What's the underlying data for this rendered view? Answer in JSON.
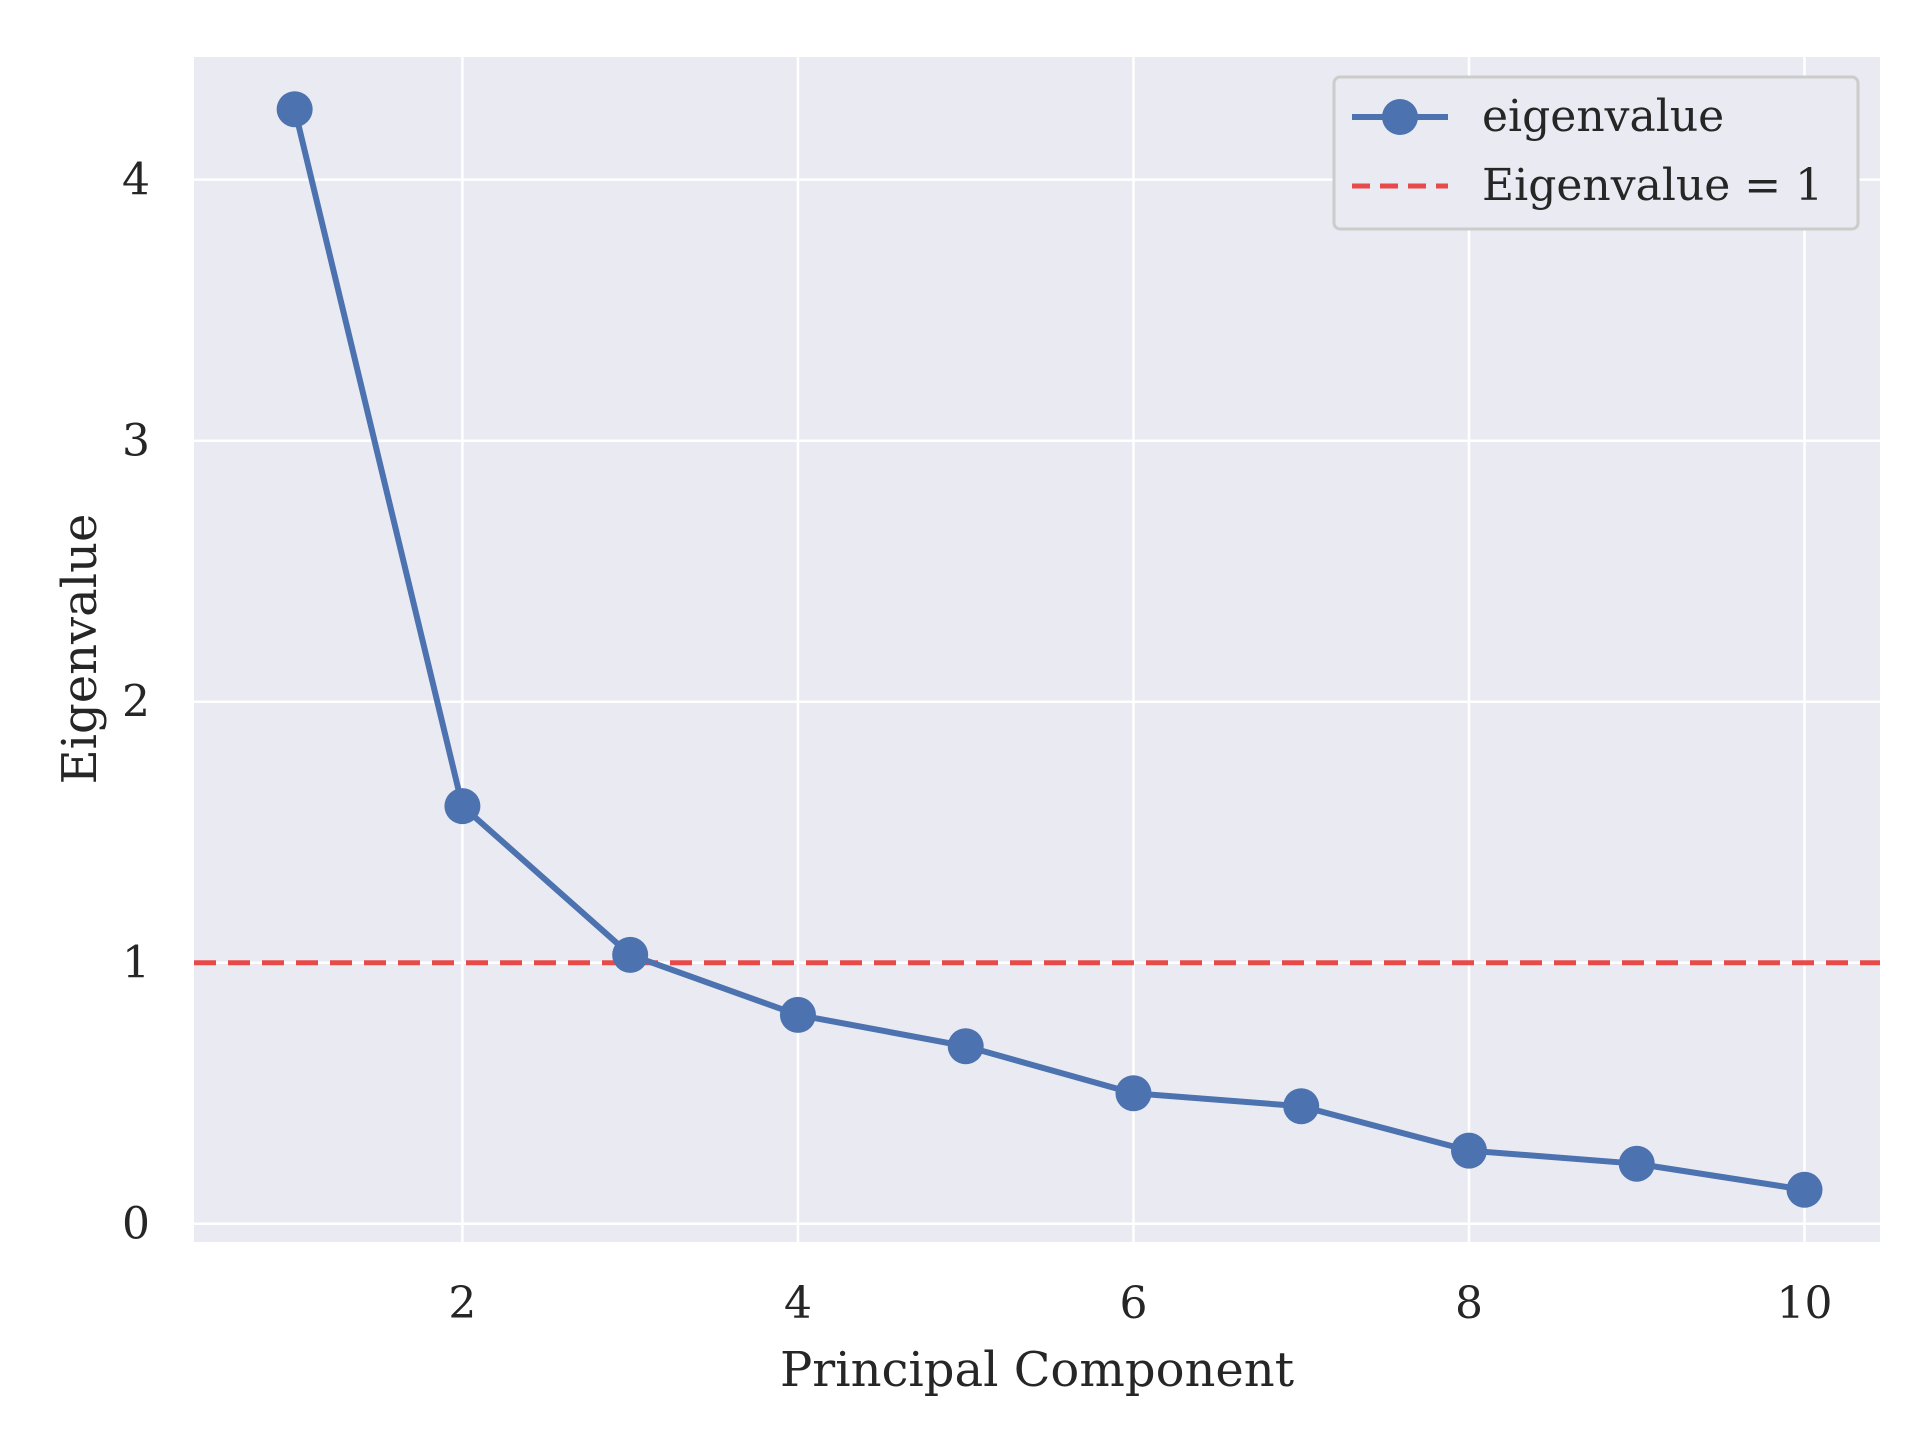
{
  "chart_data": {
    "type": "line",
    "title": "",
    "xlabel": "Principal Component",
    "ylabel": "Eigenvalue",
    "xlim": [
      0.4,
      10.45
    ],
    "ylim": [
      -0.07,
      4.47
    ],
    "xticks": [
      2,
      4,
      6,
      8,
      10
    ],
    "yticks": [
      0,
      1,
      2,
      3,
      4
    ],
    "grid": true,
    "legend_position": "top-right",
    "series": [
      {
        "name": "eigenvalue",
        "color": "#4c72b0",
        "marker": "circle",
        "x": [
          1,
          2,
          3,
          4,
          5,
          6,
          7,
          8,
          9,
          10
        ],
        "y": [
          4.27,
          1.6,
          1.03,
          0.8,
          0.68,
          0.5,
          0.45,
          0.28,
          0.23,
          0.13
        ]
      }
    ],
    "reference_lines": [
      {
        "name": "Eigenvalue = 1",
        "orientation": "horizontal",
        "y": 1,
        "color": "#e84a4a",
        "style": "dashed"
      }
    ],
    "colors": {
      "plot_background": "#eaeaf2",
      "grid": "#ffffff",
      "text": "#262626"
    }
  }
}
